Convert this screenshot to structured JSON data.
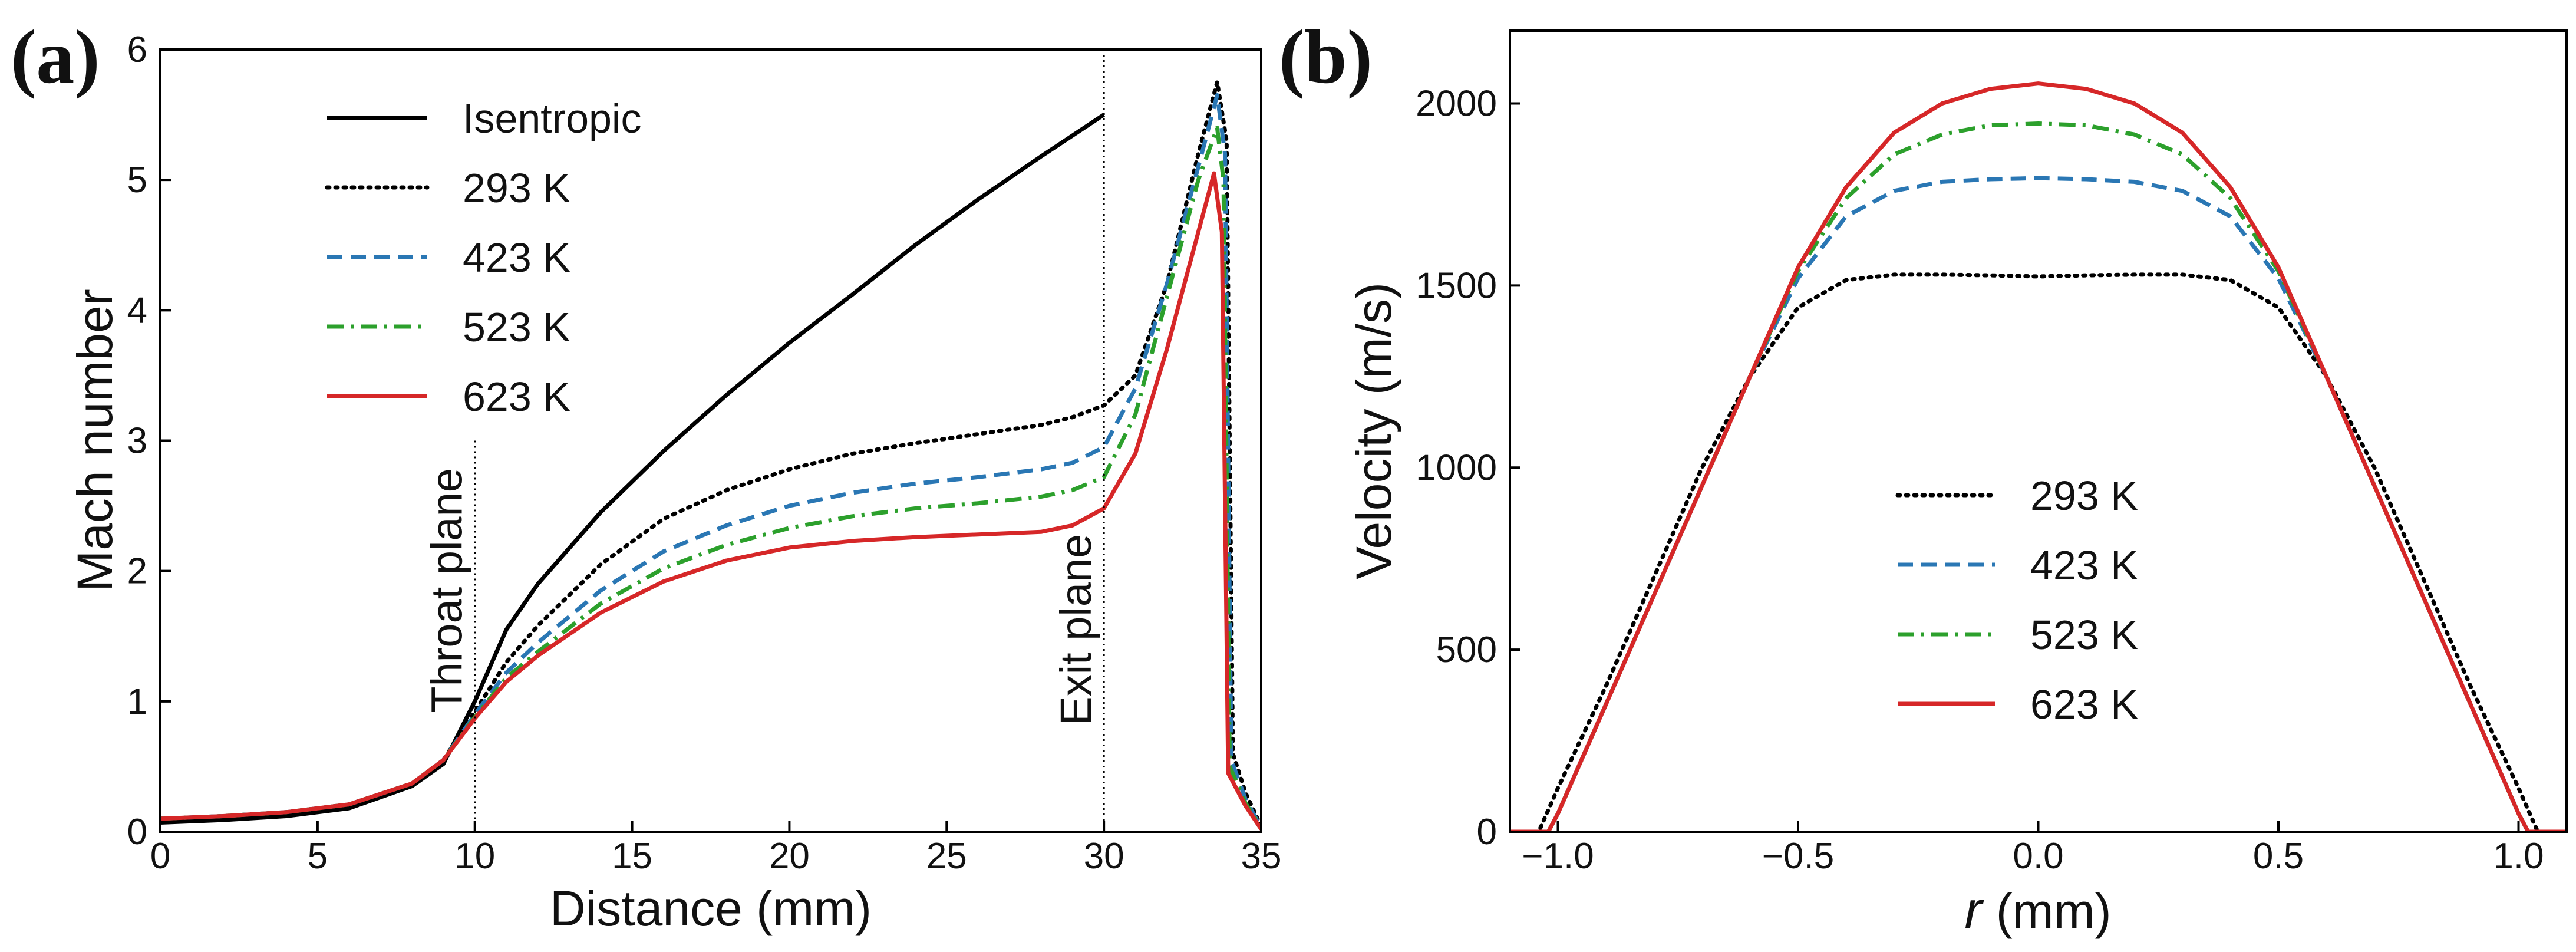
{
  "chart_data": [
    {
      "panel_label": "(a)",
      "type": "line",
      "title": "",
      "xlabel": "Distance (mm)",
      "ylabel": "Mach number",
      "xlim": [
        0,
        35
      ],
      "ylim": [
        0,
        6
      ],
      "xticks": [
        0,
        5,
        10,
        15,
        20,
        25,
        30,
        35
      ],
      "yticks": [
        0,
        1,
        2,
        3,
        4,
        5,
        6
      ],
      "legend_position": "upper-left",
      "annotations": [
        {
          "text": "Throat plane",
          "x": 10,
          "line_y_top": 3.0
        },
        {
          "text": "Exit plane",
          "x": 30,
          "line_y_top": 6.0
        }
      ],
      "series": [
        {
          "name": "Isentropic",
          "color": "#000000",
          "dash": "solid",
          "x": [
            0,
            2,
            4,
            6,
            8,
            9,
            10,
            11,
            12,
            14,
            16,
            18,
            20,
            22,
            24,
            26,
            28,
            30
          ],
          "y": [
            0.07,
            0.09,
            0.12,
            0.18,
            0.35,
            0.52,
            1.0,
            1.55,
            1.9,
            2.45,
            2.92,
            3.35,
            3.75,
            4.12,
            4.5,
            4.85,
            5.18,
            5.5
          ]
        },
        {
          "name": "293 K",
          "color": "#000000",
          "dash": "dotted",
          "x": [
            0,
            2,
            4,
            6,
            8,
            9,
            10,
            11,
            12,
            14,
            16,
            18,
            20,
            22,
            24,
            26,
            28,
            29,
            30,
            31,
            32,
            33,
            33.6,
            33.9,
            34.1,
            34.5,
            35
          ],
          "y": [
            0.1,
            0.12,
            0.15,
            0.21,
            0.37,
            0.55,
            0.92,
            1.3,
            1.58,
            2.05,
            2.4,
            2.62,
            2.78,
            2.9,
            2.98,
            3.05,
            3.12,
            3.18,
            3.27,
            3.5,
            4.2,
            5.2,
            5.75,
            5.3,
            0.6,
            0.3,
            0.04
          ]
        },
        {
          "name": "423 K",
          "color": "#2a77b4",
          "dash": "dashed",
          "x": [
            0,
            2,
            4,
            6,
            8,
            9,
            10,
            11,
            12,
            14,
            16,
            18,
            20,
            22,
            24,
            26,
            28,
            29,
            30,
            31,
            32,
            33,
            33.6,
            33.85,
            34.05,
            34.5,
            35
          ],
          "y": [
            0.1,
            0.12,
            0.15,
            0.21,
            0.37,
            0.55,
            0.9,
            1.22,
            1.45,
            1.85,
            2.15,
            2.35,
            2.5,
            2.6,
            2.67,
            2.72,
            2.78,
            2.83,
            2.95,
            3.4,
            4.2,
            5.1,
            5.65,
            5.2,
            0.55,
            0.25,
            0.03
          ]
        },
        {
          "name": "523 K",
          "color": "#2ca02c",
          "dash": "dashdot",
          "x": [
            0,
            2,
            4,
            6,
            8,
            9,
            10,
            11,
            12,
            14,
            16,
            18,
            20,
            22,
            24,
            26,
            28,
            29,
            30,
            31,
            32,
            33,
            33.6,
            33.8,
            34.0,
            34.5,
            35
          ],
          "y": [
            0.1,
            0.12,
            0.15,
            0.21,
            0.37,
            0.55,
            0.88,
            1.18,
            1.38,
            1.75,
            2.02,
            2.2,
            2.33,
            2.42,
            2.48,
            2.52,
            2.57,
            2.62,
            2.72,
            3.2,
            4.1,
            5.0,
            5.4,
            5.0,
            0.5,
            0.22,
            0.03
          ]
        },
        {
          "name": "623 K",
          "color": "#d62728",
          "dash": "solid",
          "x": [
            0,
            2,
            4,
            6,
            8,
            9,
            10,
            11,
            12,
            14,
            16,
            18,
            20,
            22,
            24,
            26,
            28,
            29,
            30,
            31,
            32,
            33,
            33.5,
            33.75,
            33.95,
            34.5,
            35
          ],
          "y": [
            0.1,
            0.12,
            0.15,
            0.21,
            0.37,
            0.55,
            0.87,
            1.15,
            1.35,
            1.68,
            1.92,
            2.08,
            2.18,
            2.23,
            2.26,
            2.28,
            2.3,
            2.35,
            2.48,
            2.9,
            3.7,
            4.6,
            5.05,
            4.6,
            0.45,
            0.2,
            0.02
          ]
        }
      ]
    },
    {
      "panel_label": "(b)",
      "type": "line",
      "title": "",
      "xlabel_italic": "r",
      "xlabel_rest": " (mm)",
      "ylabel": "Velocity (m/s)",
      "xlim": [
        -1.1,
        1.1
      ],
      "ylim": [
        0,
        2200
      ],
      "xticks": [
        -1.0,
        -0.5,
        0.0,
        0.5,
        1.0
      ],
      "xtick_labels": [
        "−1.0",
        "−0.5",
        "0.0",
        "0.5",
        "1.0"
      ],
      "yticks": [
        0,
        500,
        1000,
        1500,
        2000
      ],
      "legend_position": "lower-center",
      "series": [
        {
          "name": "293 K",
          "color": "#000000",
          "dash": "dotted",
          "x": [
            -1.1,
            -1.04,
            -1.0,
            -0.9,
            -0.8,
            -0.7,
            -0.6,
            -0.5,
            -0.4,
            -0.3,
            -0.2,
            -0.1,
            0.0,
            0.1,
            0.2,
            0.3,
            0.4,
            0.5,
            0.6,
            0.7,
            0.8,
            0.9,
            1.0,
            1.04,
            1.1
          ],
          "y": [
            0,
            0,
            120,
            400,
            700,
            1000,
            1250,
            1440,
            1515,
            1530,
            1530,
            1528,
            1525,
            1528,
            1530,
            1530,
            1515,
            1440,
            1250,
            1000,
            700,
            400,
            120,
            0,
            0
          ]
        },
        {
          "name": "423 K",
          "color": "#2a77b4",
          "dash": "dashed",
          "x": [
            -1.1,
            -1.02,
            -1.0,
            -0.9,
            -0.8,
            -0.7,
            -0.6,
            -0.5,
            -0.4,
            -0.3,
            -0.2,
            -0.1,
            0.0,
            0.1,
            0.2,
            0.3,
            0.4,
            0.5,
            0.6,
            0.7,
            0.8,
            0.9,
            1.0,
            1.02,
            1.1
          ],
          "y": [
            0,
            0,
            50,
            350,
            650,
            950,
            1250,
            1520,
            1690,
            1760,
            1785,
            1792,
            1795,
            1792,
            1785,
            1760,
            1690,
            1520,
            1250,
            950,
            650,
            350,
            50,
            0,
            0
          ]
        },
        {
          "name": "523 K",
          "color": "#2ca02c",
          "dash": "dashdot",
          "x": [
            -1.1,
            -1.02,
            -1.0,
            -0.9,
            -0.8,
            -0.7,
            -0.6,
            -0.5,
            -0.4,
            -0.3,
            -0.2,
            -0.1,
            0.0,
            0.1,
            0.2,
            0.3,
            0.4,
            0.5,
            0.6,
            0.7,
            0.8,
            0.9,
            1.0,
            1.02,
            1.1
          ],
          "y": [
            0,
            0,
            50,
            350,
            650,
            950,
            1250,
            1540,
            1740,
            1860,
            1915,
            1940,
            1945,
            1940,
            1915,
            1860,
            1740,
            1540,
            1250,
            950,
            650,
            350,
            50,
            0,
            0
          ]
        },
        {
          "name": "623 K",
          "color": "#d62728",
          "dash": "solid",
          "x": [
            -1.1,
            -1.02,
            -1.0,
            -0.9,
            -0.8,
            -0.7,
            -0.6,
            -0.5,
            -0.4,
            -0.3,
            -0.2,
            -0.1,
            0.0,
            0.1,
            0.2,
            0.3,
            0.4,
            0.5,
            0.6,
            0.7,
            0.8,
            0.9,
            1.0,
            1.02,
            1.1
          ],
          "y": [
            0,
            0,
            50,
            350,
            650,
            950,
            1250,
            1550,
            1770,
            1920,
            2000,
            2040,
            2055,
            2040,
            2000,
            1920,
            1770,
            1550,
            1250,
            950,
            650,
            350,
            50,
            0,
            0
          ]
        }
      ]
    }
  ]
}
